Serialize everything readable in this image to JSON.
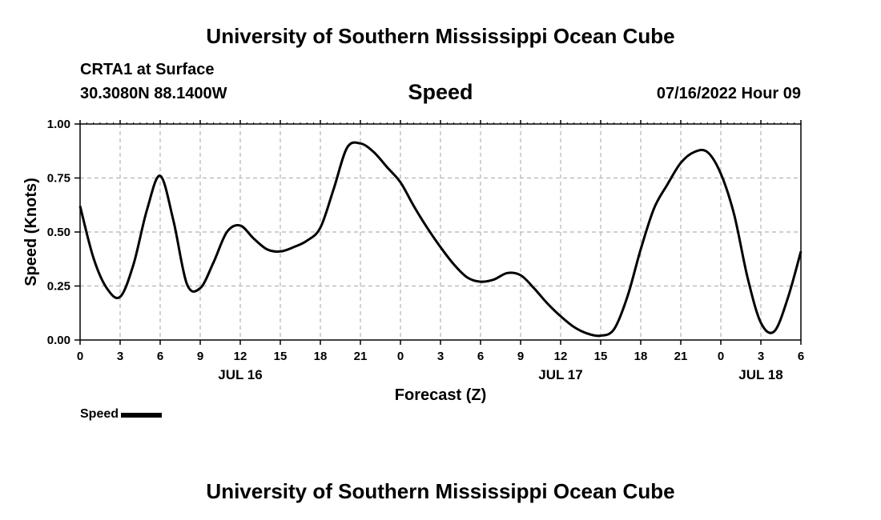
{
  "header": {
    "title": "University of Southern Mississippi Ocean Cube",
    "station": "CRTA1 at Surface",
    "coordinates": "30.3080N  88.1400W",
    "datetime": "07/16/2022 Hour 09",
    "footer_title": "University of Southern Mississippi Ocean Cube"
  },
  "colors": {
    "line": "#000000",
    "grid": "#b4b4b4",
    "background": "#ffffff"
  },
  "chart_data": {
    "type": "line",
    "title": "Speed",
    "xlabel": "Forecast (Z)",
    "ylabel": "Speed (Knots)",
    "x_unit": "hours since 2022-07-16 00Z",
    "xlim": [
      0,
      54
    ],
    "ylim": [
      0,
      1
    ],
    "x_ticks": [
      0,
      3,
      6,
      9,
      12,
      15,
      18,
      21,
      24,
      27,
      30,
      33,
      36,
      39,
      42,
      45,
      48,
      51,
      54
    ],
    "x_tick_labels": [
      "0",
      "3",
      "6",
      "9",
      "12",
      "15",
      "18",
      "21",
      "0",
      "3",
      "6",
      "9",
      "12",
      "15",
      "18",
      "21",
      "0",
      "3",
      "6"
    ],
    "y_ticks": [
      0,
      0.25,
      0.5,
      0.75,
      1.0
    ],
    "y_tick_labels": [
      "0.00",
      "0.25",
      "0.50",
      "0.75",
      "1.00"
    ],
    "date_labels": [
      {
        "x": 12,
        "text": "JUL 16"
      },
      {
        "x": 36,
        "text": "JUL 17"
      },
      {
        "x": 51,
        "text": "JUL 18"
      }
    ],
    "grid": true,
    "legend": {
      "position": "bottom-left",
      "entries": [
        "Speed"
      ]
    },
    "series": [
      {
        "name": "Speed",
        "x": [
          0,
          1,
          2,
          3,
          4,
          5,
          6,
          7,
          8,
          9,
          10,
          11,
          12,
          13,
          14,
          15,
          16,
          17,
          18,
          19,
          20,
          21,
          22,
          23,
          24,
          25,
          26,
          27,
          28,
          29,
          30,
          31,
          32,
          33,
          34,
          35,
          36,
          37,
          38,
          39,
          40,
          41,
          42,
          43,
          44,
          45,
          46,
          47,
          48,
          49,
          50,
          51,
          52,
          53,
          54
        ],
        "values": [
          0.62,
          0.38,
          0.24,
          0.2,
          0.35,
          0.6,
          0.76,
          0.55,
          0.26,
          0.24,
          0.36,
          0.5,
          0.53,
          0.47,
          0.42,
          0.41,
          0.43,
          0.46,
          0.52,
          0.7,
          0.89,
          0.91,
          0.87,
          0.8,
          0.73,
          0.62,
          0.52,
          0.43,
          0.35,
          0.29,
          0.27,
          0.28,
          0.31,
          0.3,
          0.24,
          0.17,
          0.11,
          0.06,
          0.03,
          0.02,
          0.05,
          0.2,
          0.42,
          0.61,
          0.72,
          0.82,
          0.87,
          0.87,
          0.77,
          0.58,
          0.29,
          0.08,
          0.04,
          0.19,
          0.41
        ]
      }
    ]
  }
}
